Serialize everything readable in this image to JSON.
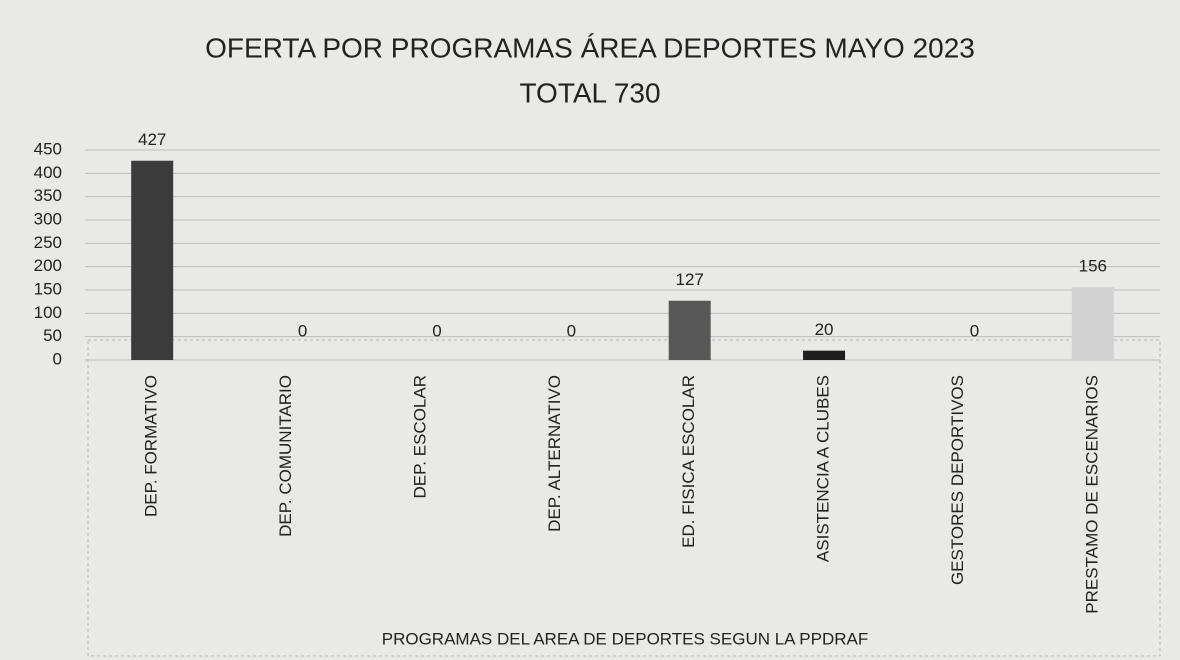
{
  "chart_data": {
    "type": "bar",
    "title": "OFERTA POR PROGRAMAS ÁREA DEPORTES  MAYO 2023",
    "subtitle": "TOTAL 730",
    "x_label": "PROGRAMAS DEL AREA DE DEPORTES SEGUN LA PPDRAF",
    "categories": [
      "DEP. FORMATIVO",
      "DEP. COMUNITARIO",
      "DEP. ESCOLAR",
      "DEP. ALTERNATIVO",
      "ED. FISICA ESCOLAR",
      "ASISTENCIA A CLUBES",
      "GESTORES DEPORTIVOS",
      "PRESTAMO DE ESCENARIOS"
    ],
    "values": [
      427,
      0,
      0,
      0,
      127,
      20,
      0,
      156
    ],
    "colors": [
      "#3b3b3b",
      "#555555",
      "#555555",
      "#555555",
      "#585858",
      "#1e1e1e",
      "#555555",
      "#d2d2d2"
    ],
    "ylim": [
      0,
      450
    ],
    "yticks": [
      0,
      50,
      100,
      150,
      200,
      250,
      300,
      350,
      400,
      450
    ],
    "grid": true
  }
}
